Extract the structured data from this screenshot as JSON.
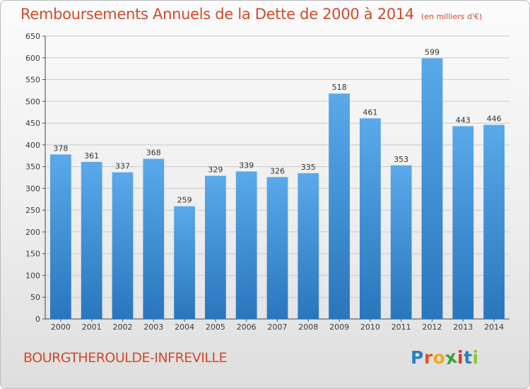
{
  "title": "Remboursements Annuels de la Dette de 2000 à 2014",
  "unit": "(en milliers d'€)",
  "town": "BOURGTHEROULDE-INFREVILLE",
  "logo": {
    "letters": [
      "P",
      "r",
      "o",
      "x",
      "i",
      "t",
      "i"
    ],
    "colors": [
      "#2a7fc1",
      "#e8541a",
      "#f2a81d",
      "#3aa335",
      "#d43a2a",
      "#2a7fc1",
      "#8cc63f"
    ]
  },
  "colors": {
    "bar": "#3d8fd6",
    "bar_dark": "#2a76bd",
    "title": "#d04a2a"
  },
  "chart_data": {
    "type": "bar",
    "title": "Remboursements Annuels de la Dette de 2000 à 2014",
    "categories": [
      "2000",
      "2001",
      "2002",
      "2003",
      "2004",
      "2005",
      "2006",
      "2007",
      "2008",
      "2009",
      "2010",
      "2011",
      "2012",
      "2013",
      "2014"
    ],
    "values": [
      378,
      361,
      337,
      368,
      259,
      329,
      339,
      326,
      335,
      518,
      461,
      353,
      599,
      443,
      446
    ],
    "ylim": [
      0,
      650
    ],
    "yticks": [
      0,
      50,
      100,
      150,
      200,
      250,
      300,
      350,
      400,
      450,
      500,
      550,
      600,
      650
    ],
    "grid": true
  }
}
